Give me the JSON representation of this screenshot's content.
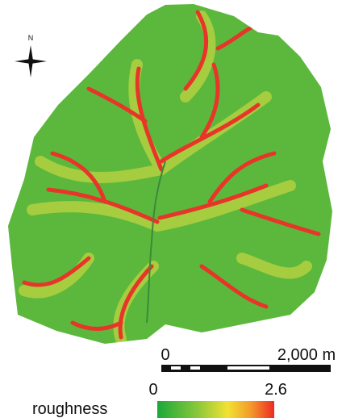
{
  "compass": {
    "label": "N"
  },
  "scale_bar": {
    "start_label": "0",
    "end_label": "2,000 m"
  },
  "legend": {
    "title": "roughness",
    "min": 0,
    "max": 2.6
  }
}
